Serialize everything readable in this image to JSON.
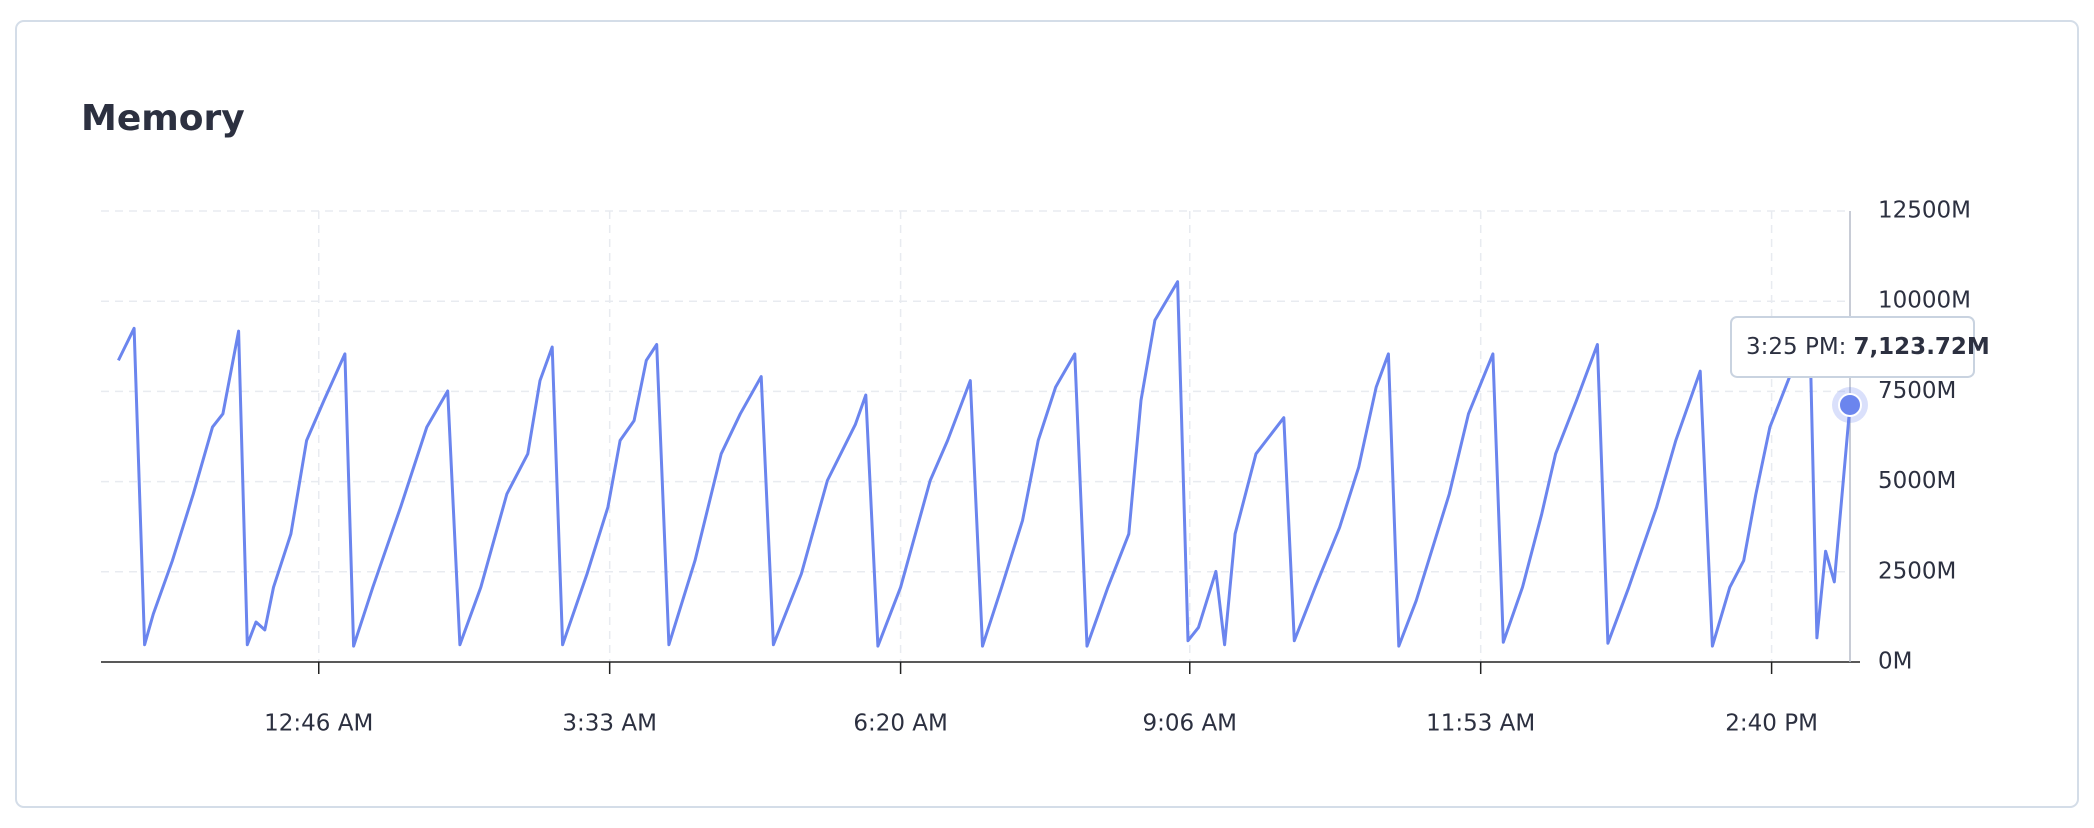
{
  "chart_data": {
    "type": "line",
    "title": "Memory",
    "x": [
      -69,
      -60,
      -54,
      -49,
      -38,
      -26,
      -15,
      -9,
      0,
      5,
      10,
      15,
      20,
      30,
      39,
      49,
      61,
      66,
      77,
      93,
      108,
      120,
      127,
      139,
      154,
      166,
      173,
      180,
      186,
      200,
      212,
      219,
      227,
      234,
      240,
      247,
      262,
      277,
      288,
      300,
      307,
      323,
      338,
      354,
      360,
      367,
      380,
      397,
      407,
      420,
      427,
      438,
      450,
      459,
      469,
      480,
      487,
      499,
      511,
      518,
      526,
      539,
      545,
      551,
      561,
      566,
      572,
      584,
      600,
      606,
      618,
      632,
      643,
      653,
      660,
      666,
      676,
      695,
      706,
      720,
      726,
      737,
      748,
      756,
      768,
      780,
      786,
      798,
      814,
      825,
      839,
      846,
      856,
      864,
      871,
      879,
      894,
      902,
      906,
      911,
      916,
      925
    ],
    "series": [
      {
        "name": "Memory",
        "color": "#6b85ee",
        "values": [
          8360,
          9250,
          480,
          1330,
          2810,
          4660,
          6510,
          6880,
          9170,
          480,
          1110,
          890,
          2070,
          3550,
          6140,
          7250,
          8540,
          440,
          2070,
          4290,
          6510,
          7510,
          480,
          2070,
          4660,
          5770,
          7800,
          8730,
          480,
          2440,
          4290,
          6140,
          6690,
          8360,
          8800,
          480,
          2810,
          5770,
          6880,
          7910,
          480,
          2440,
          5030,
          6580,
          7400,
          440,
          2070,
          5030,
          6140,
          7800,
          440,
          2070,
          3920,
          6140,
          7620,
          8540,
          440,
          2070,
          3550,
          7250,
          9470,
          10540,
          590,
          960,
          2510,
          480,
          3550,
          5770,
          6770,
          590,
          2070,
          3730,
          5400,
          7620,
          8540,
          440,
          1700,
          4660,
          6880,
          8540,
          550,
          2070,
          4100,
          5770,
          7250,
          8800,
          520,
          2070,
          4290,
          6140,
          8060,
          440,
          2070,
          2810,
          4660,
          6510,
          8360,
          9100,
          670,
          3070,
          2220,
          7123.72
        ]
      }
    ],
    "xlim": [
      -79,
      925
    ],
    "xticks": [
      {
        "value": 46,
        "label": "12:46 AM"
      },
      {
        "value": 213,
        "label": "3:33 AM"
      },
      {
        "value": 380,
        "label": "6:20 AM"
      },
      {
        "value": 546,
        "label": "9:06 AM"
      },
      {
        "value": 713,
        "label": "11:53 AM"
      },
      {
        "value": 880,
        "label": "2:40 PM"
      }
    ],
    "ylim": [
      0,
      12500
    ],
    "yticks": [
      {
        "value": 0,
        "label": "0M"
      },
      {
        "value": 2500,
        "label": "2500M"
      },
      {
        "value": 5000,
        "label": "5000M"
      },
      {
        "value": 7500,
        "label": "7500M"
      },
      {
        "value": 10000,
        "label": "10000M"
      },
      {
        "value": 12500,
        "label": "12500M"
      }
    ],
    "grid": true,
    "tooltip": {
      "label": "3:25 PM:",
      "value_label": "7,123.72M"
    }
  }
}
